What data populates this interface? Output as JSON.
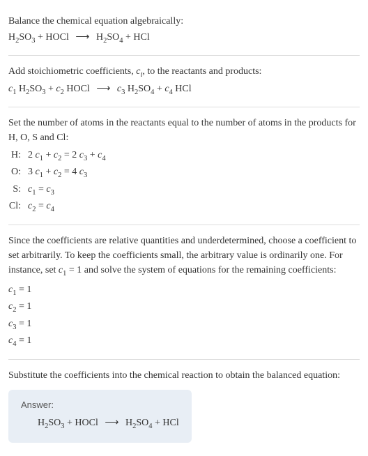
{
  "colors": {
    "background": "#ffffff",
    "text": "#333333",
    "divider": "#dddddd",
    "answer_box_bg": "#e8eef5",
    "answer_label": "#555555"
  },
  "typography": {
    "body_font": "Georgia, Times New Roman, serif",
    "body_size_pt": 11,
    "answer_label_font": "Arial, Helvetica, sans-serif",
    "answer_label_size_pt": 10
  },
  "section1": {
    "line1": "Balance the chemical equation algebraically:",
    "reaction_lhs1": "H",
    "reaction_lhs1_sub1": "2",
    "reaction_lhs1_mid": "SO",
    "reaction_lhs1_sub2": "3",
    "plus1": " + HOCl ",
    "arrow": "⟶",
    "reaction_rhs1": "  H",
    "reaction_rhs1_sub1": "2",
    "reaction_rhs1_mid": "SO",
    "reaction_rhs1_sub2": "4",
    "plus2": " + HCl"
  },
  "section2": {
    "line1a": "Add stoichiometric coefficients, ",
    "ci": "c",
    "ci_sub": "i",
    "line1b": ", to the reactants and products:",
    "c1": "c",
    "c1_sub": "1",
    "sp1": " H",
    "sp1_sub1": "2",
    "sp1_mid": "SO",
    "sp1_sub2": "3",
    "plus1": " + ",
    "c2": "c",
    "c2_sub": "2",
    "sp2": " HOCl ",
    "arrow": "⟶",
    "sp_after_arrow": "  ",
    "c3": "c",
    "c3_sub": "3",
    "sp3": " H",
    "sp3_sub1": "2",
    "sp3_mid": "SO",
    "sp3_sub2": "4",
    "plus2": " + ",
    "c4": "c",
    "c4_sub": "4",
    "sp4": " HCl"
  },
  "section3": {
    "line1": "Set the number of atoms in the reactants equal to the number of atoms in the products for H, O, S and Cl:",
    "rows": [
      {
        "label": "H:",
        "pre1": "2 ",
        "c1": "c",
        "s1": "1",
        "mid1": " + ",
        "c2": "c",
        "s2": "2",
        "eq": " = 2 ",
        "c3": "c",
        "s3": "3",
        "mid2": " + ",
        "c4": "c",
        "s4": "4"
      },
      {
        "label": "O:",
        "pre1": "3 ",
        "c1": "c",
        "s1": "1",
        "mid1": " + ",
        "c2": "c",
        "s2": "2",
        "eq": " = 4 ",
        "c3": "c",
        "s3": "3",
        "mid2": "",
        "c4": "",
        "s4": ""
      },
      {
        "label": "S:",
        "pre1": "",
        "c1": "c",
        "s1": "1",
        "mid1": "",
        "c2": "",
        "s2": "",
        "eq": " = ",
        "c3": "c",
        "s3": "3",
        "mid2": "",
        "c4": "",
        "s4": ""
      },
      {
        "label": "Cl:",
        "pre1": "",
        "c1": "c",
        "s1": "2",
        "mid1": "",
        "c2": "",
        "s2": "",
        "eq": " = ",
        "c3": "c",
        "s3": "4",
        "mid2": "",
        "c4": "",
        "s4": ""
      }
    ]
  },
  "section4": {
    "line1a": "Since the coefficients are relative quantities and underdetermined, choose a coefficient to set arbitrarily. To keep the coefficients small, the arbitrary value is ordinarily one. For instance, set ",
    "c1": "c",
    "c1_sub": "1",
    "line1b": " = 1 and solve the system of equations for the remaining coefficients:",
    "coeffs": [
      {
        "c": "c",
        "sub": "1",
        "val": " = 1"
      },
      {
        "c": "c",
        "sub": "2",
        "val": " = 1"
      },
      {
        "c": "c",
        "sub": "3",
        "val": " = 1"
      },
      {
        "c": "c",
        "sub": "4",
        "val": " = 1"
      }
    ]
  },
  "section5": {
    "line1": "Substitute the coefficients into the chemical reaction to obtain the balanced equation:",
    "answer_label": "Answer:",
    "lhs1": "H",
    "lhs1_sub1": "2",
    "lhs1_mid": "SO",
    "lhs1_sub2": "3",
    "plus1": " + HOCl ",
    "arrow": "⟶",
    "rhs1": "  H",
    "rhs1_sub1": "2",
    "rhs1_mid": "SO",
    "rhs1_sub2": "4",
    "plus2": " + HCl"
  }
}
